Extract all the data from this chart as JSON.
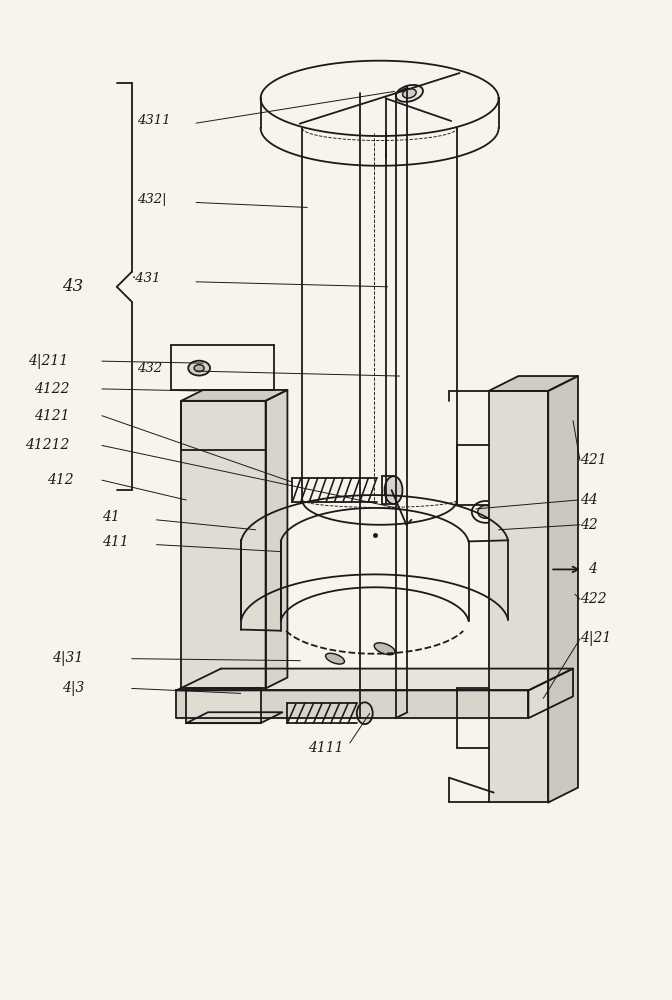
{
  "bg_color": "#f8f4ec",
  "line_color": "#1a1a1a",
  "lw": 1.3,
  "lw_thin": 0.7,
  "lw_label": 0.7
}
